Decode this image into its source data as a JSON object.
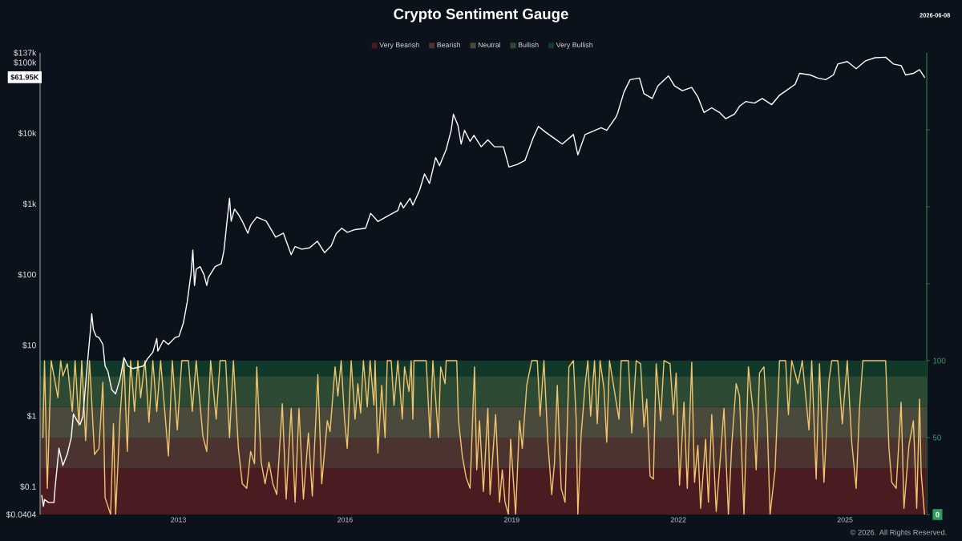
{
  "chart_data": {
    "type": "line",
    "title": "Crypto Sentiment Gauge",
    "annotations": [
      "2026-06-08",
      "© 2026. All Rights Reserved."
    ],
    "log": "y",
    "legend": "top",
    "xlim": [
      2010.51,
      2026.47
    ],
    "xticks": [
      2013,
      2016,
      2019,
      2022,
      2025
    ],
    "ylim": [
      0.0404,
      137000
    ],
    "yticks": [
      {
        "value": 0.0404,
        "label": "$0.0404"
      },
      {
        "value": 0.1,
        "label": "$0.1"
      },
      {
        "value": 1,
        "label": "$1"
      },
      {
        "value": 10,
        "label": "$10"
      },
      {
        "value": 100,
        "label": "$100"
      },
      {
        "value": 1000,
        "label": "$1k"
      },
      {
        "value": 10000,
        "label": "$10k"
      },
      {
        "value": 61950,
        "label": "$61.95K"
      },
      {
        "value": 100000,
        "label": "$100k"
      },
      {
        "value": 137000,
        "label": "$137k"
      }
    ],
    "y2lim": [
      0,
      300
    ],
    "y2ticks": [
      0,
      50,
      100,
      {
        "value": 150,
        "label": null
      },
      {
        "value": 200,
        "label": null
      },
      {
        "value": 250,
        "label": null
      }
    ],
    "bands": [
      {
        "axis": "y2",
        "from": 0,
        "to": 30,
        "label": "Very Bearish",
        "color": "#4a1c22"
      },
      {
        "axis": "y2",
        "from": 30,
        "to": 50,
        "label": "Bearish",
        "color": "#4b3430"
      },
      {
        "axis": "y2",
        "from": 50,
        "to": 70,
        "label": "Neutral",
        "color": "#4a4a3c"
      },
      {
        "axis": "y2",
        "from": 70,
        "to": 90,
        "label": "Bullish",
        "color": "#2d4a34"
      },
      {
        "axis": "y2",
        "from": 90,
        "to": 100,
        "label": "Very Bullish",
        "color": "#10392a"
      }
    ],
    "series": [
      {
        "color": "#ffffff",
        "x": [
          2010.54,
          2010.57,
          2010.59,
          2010.66,
          2010.76,
          2010.78,
          2010.85,
          2010.92,
          2011.0,
          2011.07,
          2011.11,
          2011.19,
          2011.23,
          2011.28,
          2011.35,
          2011.38,
          2011.42,
          2011.44,
          2011.47,
          2011.52,
          2011.57,
          2011.64,
          2011.68,
          2011.73,
          2011.8,
          2011.87,
          2011.95,
          2012.02,
          2012.09,
          2012.18,
          2012.28,
          2012.37,
          2012.44,
          2012.54,
          2012.61,
          2012.63,
          2012.73,
          2012.82,
          2012.94,
          2013.01,
          2013.09,
          2013.16,
          2013.23,
          2013.26,
          2013.29,
          2013.32,
          2013.39,
          2013.46,
          2013.51,
          2013.54,
          2013.66,
          2013.77,
          2013.82,
          2013.87,
          2013.92,
          2013.95,
          2014.01,
          2014.08,
          2014.15,
          2014.25,
          2014.3,
          2014.41,
          2014.58,
          2014.75,
          2014.89,
          2015.03,
          2015.1,
          2015.22,
          2015.36,
          2015.5,
          2015.63,
          2015.75,
          2015.84,
          2015.94,
          2016.04,
          2016.18,
          2016.37,
          2016.46,
          2016.59,
          2016.81,
          2016.95,
          2017.0,
          2017.05,
          2017.17,
          2017.22,
          2017.34,
          2017.43,
          2017.52,
          2017.63,
          2017.7,
          2017.82,
          2017.91,
          2017.95,
          2018.03,
          2018.09,
          2018.15,
          2018.25,
          2018.32,
          2018.45,
          2018.57,
          2018.69,
          2018.85,
          2018.95,
          2019.1,
          2019.24,
          2019.38,
          2019.48,
          2019.6,
          2019.77,
          2019.91,
          2020.11,
          2020.19,
          2020.32,
          2020.61,
          2020.71,
          2020.88,
          2020.91,
          2021.02,
          2021.13,
          2021.3,
          2021.38,
          2021.53,
          2021.63,
          2021.82,
          2021.93,
          2022.07,
          2022.24,
          2022.35,
          2022.46,
          2022.6,
          2022.74,
          2022.85,
          2023.01,
          2023.1,
          2023.21,
          2023.37,
          2023.51,
          2023.68,
          2023.82,
          2023.98,
          2024.1,
          2024.18,
          2024.37,
          2024.51,
          2024.65,
          2024.79,
          2024.87,
          2025.04,
          2025.2,
          2025.37,
          2025.54,
          2025.73,
          2025.87,
          2026.01,
          2026.09,
          2026.23,
          2026.34,
          2026.43
        ],
        "values": [
          0.075,
          0.053,
          0.066,
          0.06,
          0.06,
          0.097,
          0.35,
          0.2,
          0.29,
          0.49,
          1.07,
          0.82,
          0.76,
          0.98,
          4.3,
          8.0,
          17.5,
          28,
          16.7,
          13.4,
          12.9,
          10.3,
          5.1,
          4.3,
          2.35,
          2.06,
          3.33,
          6.7,
          5.1,
          4.7,
          4.9,
          5.1,
          6.4,
          8.0,
          12.5,
          8.3,
          11.8,
          10.3,
          12.9,
          13.4,
          20.8,
          41.7,
          109,
          223,
          70.4,
          119,
          130,
          100,
          70.4,
          91.5,
          130,
          142,
          219,
          524,
          1200,
          571,
          846,
          711,
          571,
          386,
          501,
          652,
          571,
          339,
          386,
          192,
          250,
          229,
          239,
          297,
          205,
          255,
          380,
          454,
          397,
          434,
          454,
          738,
          565,
          706,
          807,
          1050,
          880,
          1200,
          962,
          1560,
          2660,
          1950,
          4530,
          3470,
          5890,
          11000,
          18600,
          13100,
          7040,
          11000,
          7700,
          9340,
          6440,
          8050,
          6440,
          6440,
          3330,
          3620,
          4140,
          8410,
          12500,
          10500,
          8410,
          7040,
          9590,
          4950,
          9590,
          12000,
          11000,
          17100,
          19700,
          38200,
          57300,
          60300,
          36200,
          31100,
          46700,
          64700,
          46700,
          40100,
          44500,
          32700,
          19700,
          22900,
          19700,
          16100,
          18700,
          24100,
          28100,
          26700,
          31100,
          25400,
          34500,
          42200,
          49200,
          70300,
          66800,
          60300,
          57300,
          66800,
          95500,
          103500,
          81800,
          106000,
          117000,
          119000,
          95500,
          90600,
          66800,
          70300,
          79400,
          61950
        ]
      },
      {
        "color": "#f2c46d",
        "axis": "y2",
        "x": [
          2010.56,
          2010.59,
          2010.64,
          2010.71,
          2010.83,
          2010.88,
          2010.92,
          2011.0,
          2011.09,
          2011.14,
          2011.21,
          2011.26,
          2011.33,
          2011.4,
          2011.49,
          2011.57,
          2011.64,
          2011.68,
          2011.78,
          2011.83,
          2011.87,
          2011.95,
          2012.02,
          2012.08,
          2012.14,
          2012.21,
          2012.27,
          2012.32,
          2012.4,
          2012.47,
          2012.54,
          2012.61,
          2012.68,
          2012.82,
          2012.89,
          2012.98,
          2013.06,
          2013.18,
          2013.25,
          2013.32,
          2013.44,
          2013.51,
          2013.58,
          2013.68,
          2013.75,
          2013.85,
          2013.92,
          2013.99,
          2014.08,
          2014.15,
          2014.23,
          2014.3,
          2014.37,
          2014.41,
          2014.49,
          2014.56,
          2014.63,
          2014.7,
          2014.77,
          2014.87,
          2014.94,
          2015.03,
          2015.1,
          2015.17,
          2015.25,
          2015.34,
          2015.41,
          2015.51,
          2015.58,
          2015.68,
          2015.73,
          2015.82,
          2015.87,
          2015.93,
          2015.99,
          2016.04,
          2016.11,
          2016.18,
          2016.23,
          2016.28,
          2016.33,
          2016.4,
          2016.45,
          2016.52,
          2016.54,
          2016.59,
          2016.66,
          2016.72,
          2016.76,
          2016.83,
          2016.88,
          2016.95,
          2017.03,
          2017.07,
          2017.15,
          2017.19,
          2017.22,
          2017.24,
          2017.46,
          2017.53,
          2017.58,
          2017.68,
          2017.72,
          2017.8,
          2017.82,
          2018.01,
          2018.04,
          2018.11,
          2018.18,
          2018.25,
          2018.33,
          2018.37,
          2018.42,
          2018.49,
          2018.57,
          2018.61,
          2018.71,
          2018.78,
          2018.83,
          2018.88,
          2018.94,
          2018.98,
          2019.07,
          2019.14,
          2019.19,
          2019.27,
          2019.36,
          2019.46,
          2019.51,
          2019.58,
          2019.65,
          2019.72,
          2019.77,
          2019.82,
          2019.89,
          2019.96,
          2020.03,
          2020.11,
          2020.16,
          2020.19,
          2020.25,
          2020.32,
          2020.37,
          2020.42,
          2020.49,
          2020.54,
          2020.59,
          2020.66,
          2020.71,
          2020.76,
          2020.93,
          2020.97,
          2021.1,
          2021.16,
          2021.24,
          2021.32,
          2021.38,
          2021.43,
          2021.49,
          2021.55,
          2021.6,
          2021.68,
          2021.74,
          2021.85,
          2021.91,
          2021.96,
          2022.02,
          2022.1,
          2022.16,
          2022.24,
          2022.29,
          2022.35,
          2022.4,
          2022.49,
          2022.54,
          2022.6,
          2022.68,
          2022.76,
          2022.82,
          2022.9,
          2022.96,
          2023.04,
          2023.1,
          2023.18,
          2023.26,
          2023.35,
          2023.4,
          2023.46,
          2023.54,
          2023.6,
          2023.65,
          2023.74,
          2023.82,
          2023.93,
          2023.98,
          2024.04,
          2024.15,
          2024.23,
          2024.35,
          2024.4,
          2024.48,
          2024.54,
          2024.62,
          2024.71,
          2024.76,
          2024.87,
          2024.95,
          2025.04,
          2025.12,
          2025.2,
          2025.26,
          2025.32,
          2025.43,
          2025.54,
          2025.65,
          2025.73,
          2025.79,
          2025.84,
          2025.92,
          2026.01,
          2026.06,
          2026.15,
          2026.23,
          2026.29,
          2026.34,
          2026.37,
          2026.43
        ],
        "values": [
          50,
          100,
          17,
          100,
          76,
          100,
          90,
          98,
          67,
          100,
          58,
          100,
          48,
          100,
          39,
          43,
          86,
          11,
          0,
          59,
          0,
          64,
          100,
          41,
          100,
          67,
          100,
          76,
          100,
          60,
          100,
          67,
          100,
          38,
          100,
          55,
          100,
          100,
          67,
          100,
          51,
          41,
          100,
          62,
          100,
          100,
          50,
          100,
          43,
          20,
          17,
          41,
          33,
          96,
          34,
          20,
          34,
          20,
          13,
          72,
          10,
          69,
          8,
          69,
          10,
          53,
          12,
          91,
          20,
          61,
          54,
          96,
          77,
          100,
          62,
          43,
          100,
          62,
          85,
          66,
          100,
          70,
          100,
          71,
          100,
          40,
          84,
          50,
          100,
          100,
          71,
          100,
          62,
          96,
          80,
          100,
          62,
          100,
          100,
          50,
          100,
          50,
          96,
          85,
          100,
          100,
          62,
          38,
          24,
          17,
          96,
          29,
          61,
          15,
          69,
          13,
          65,
          8,
          29,
          8,
          0,
          49,
          0,
          61,
          43,
          84,
          100,
          100,
          64,
          100,
          47,
          13,
          34,
          84,
          17,
          8,
          96,
          100,
          62,
          0,
          52,
          84,
          100,
          64,
          100,
          59,
          100,
          82,
          47,
          100,
          62,
          100,
          100,
          53,
          100,
          98,
          57,
          75,
          25,
          23,
          98,
          61,
          100,
          98,
          65,
          92,
          19,
          73,
          17,
          99,
          21,
          45,
          4,
          49,
          8,
          65,
          2,
          39,
          69,
          0,
          45,
          85,
          77,
          0,
          96,
          65,
          29,
          92,
          96,
          59,
          0,
          29,
          100,
          100,
          65,
          100,
          85,
          100,
          55,
          100,
          23,
          98,
          21,
          87,
          100,
          100,
          59,
          100,
          47,
          17,
          69,
          100,
          100,
          100,
          100,
          100,
          43,
          21,
          17,
          73,
          4,
          45,
          61,
          4,
          75,
          27,
          0
        ]
      }
    ]
  }
}
